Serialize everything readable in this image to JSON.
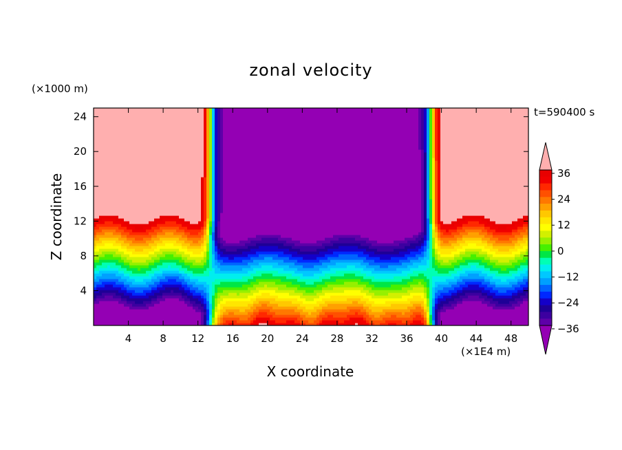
{
  "chart_data": {
    "type": "heatmap",
    "title": "zonal velocity",
    "xlabel": "X coordinate",
    "ylabel": "Z coordinate",
    "x_unit_label": "(×1E4 m)",
    "y_unit_label": "(×1000 m)",
    "time_label": "t=590400 s",
    "xlim": [
      0,
      50
    ],
    "ylim": [
      0,
      25
    ],
    "x_ticks": [
      "4",
      "8",
      "12",
      "16",
      "20",
      "24",
      "28",
      "32",
      "36",
      "40",
      "44",
      "48"
    ],
    "y_ticks": [
      "4",
      "8",
      "12",
      "16",
      "20",
      "24"
    ],
    "colorbar": {
      "labels": [
        "36",
        "24",
        "12",
        "0",
        "−12",
        "−24",
        "−36"
      ],
      "label_values": [
        36,
        24,
        12,
        0,
        -12,
        -24,
        -36
      ],
      "levels_low_to_high": [
        -39,
        -36,
        -33,
        -30,
        -27,
        -24,
        -21,
        -18,
        -15,
        -12,
        -9,
        -6,
        -3,
        0,
        3,
        6,
        9,
        12,
        15,
        18,
        21,
        24,
        27,
        30,
        33,
        36,
        39
      ],
      "colors_low_to_high": [
        "#9400b4",
        "#5e00a8",
        "#3c00a0",
        "#1e0096",
        "#1400c8",
        "#0028ff",
        "#0064ff",
        "#00a0ff",
        "#00c8ff",
        "#00eeee",
        "#00ffb4",
        "#00e646",
        "#46f000",
        "#96f000",
        "#d2f000",
        "#ffff00",
        "#ffe600",
        "#ffc800",
        "#ffa000",
        "#ff7800",
        "#ff5000",
        "#ff2800",
        "#f00000",
        "#e80000",
        "#ffafaf"
      ],
      "extend": "both"
    },
    "field_description_values": {
      "outer_bands_west_x": [
        0,
        13
      ],
      "outer_bands_east_x": [
        39,
        50
      ],
      "jet_core_x": [
        14,
        38
      ],
      "surface_value_core": 36,
      "surface_value_outer": -39,
      "top_value_core": -39,
      "top_value_outer": 39,
      "zero_contour_height_outer": 7.5,
      "zero_contour_height_core": 4.5
    }
  }
}
